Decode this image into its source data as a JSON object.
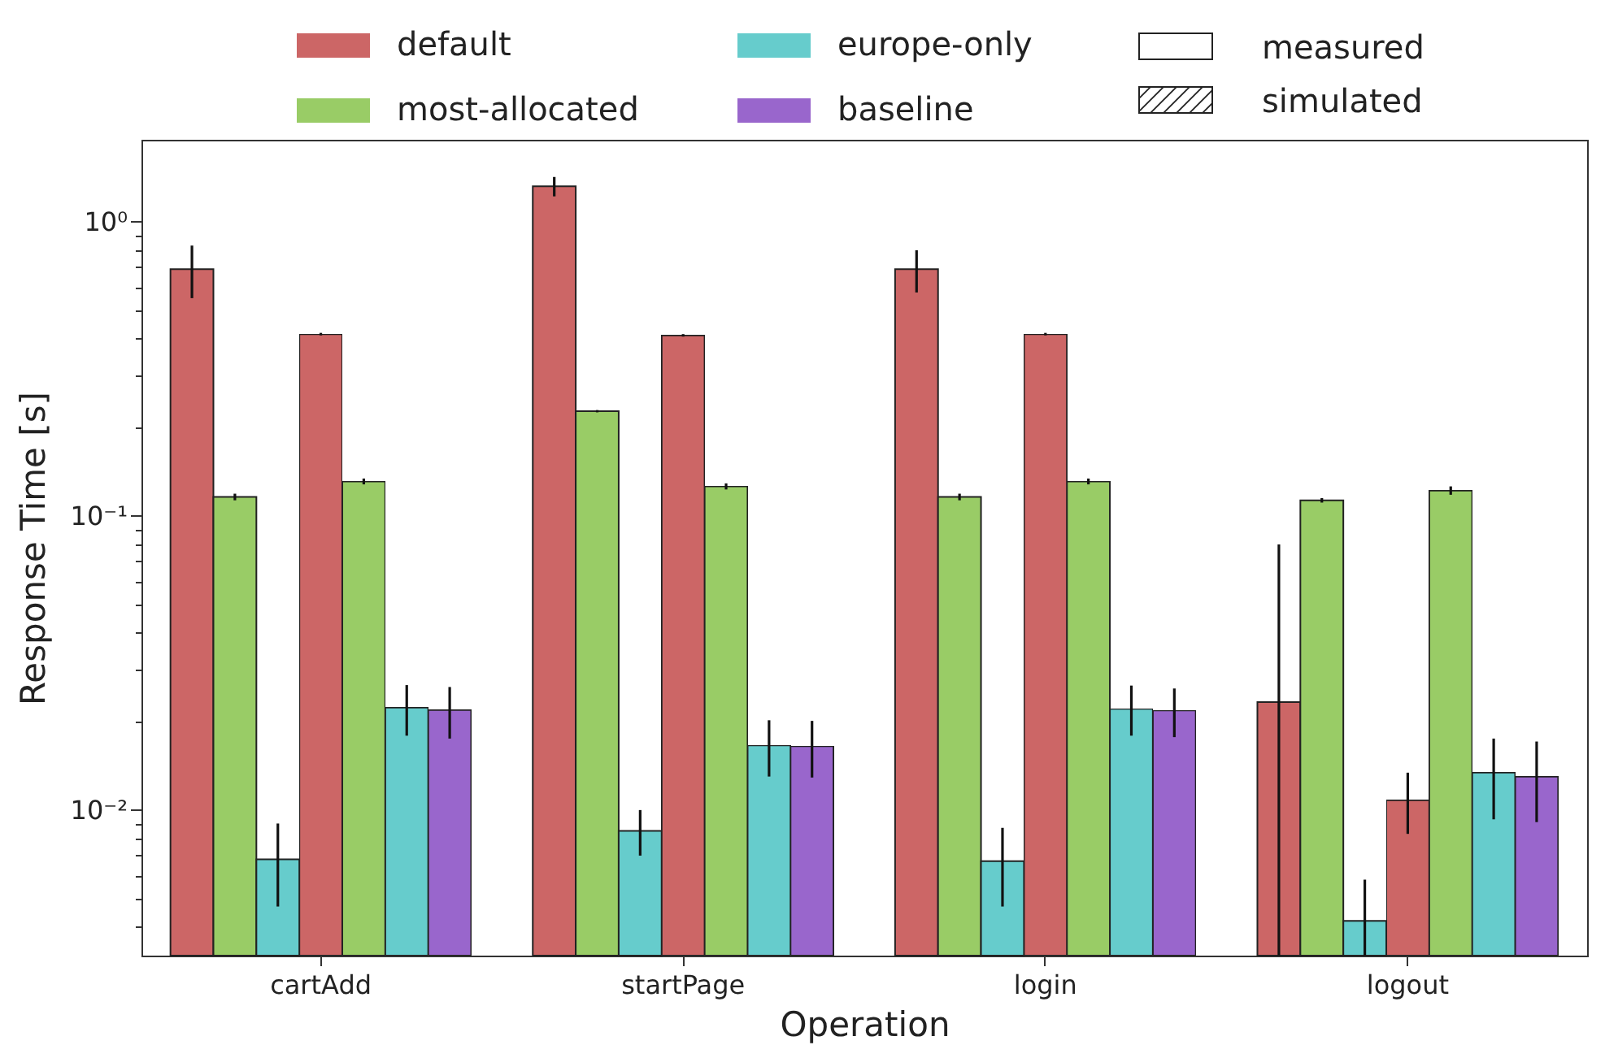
{
  "chart_data": {
    "type": "bar",
    "xlabel": "Operation",
    "ylabel": "Response Time [s]",
    "log": "y",
    "legend": "top",
    "categories": [
      "cartAdd",
      "startPage",
      "login",
      "logout"
    ],
    "annotations": [
      "measured",
      "simulated"
    ],
    "series": [
      {
        "name": "default",
        "color": "#cc6666",
        "values": [
          0.69,
          1.32,
          0.69,
          0.0233
        ],
        "errors": [
          [
            0.55,
            0.83
          ],
          [
            1.22,
            1.42
          ],
          [
            0.575,
            0.8
          ],
          [
            0.0032,
            0.08
          ]
        ]
      },
      {
        "name": "most-allocated",
        "color": "#99cc66",
        "values": [
          0.116,
          0.227,
          0.116,
          0.113
        ],
        "errors": [
          0.003,
          0.002,
          0.003,
          0.002
        ]
      },
      {
        "name": "europe-only",
        "color": "#66cccc",
        "values": [
          0.0068,
          0.0085,
          0.0067,
          0.0042
        ],
        "errors": [
          [
            0.0047,
            0.009
          ],
          [
            0.007,
            0.01
          ],
          [
            0.0047,
            0.0087
          ],
          [
            0.0032,
            0.0058
          ]
        ]
      },
      {
        "color": "#cc6666",
        "line_style": "dashed",
        "values": [
          0.415,
          0.411,
          0.415,
          0.0108
        ],
        "errors": [
          0.004,
          0.004,
          0.004,
          [
            0.0083,
            0.0134
          ]
        ]
      },
      {
        "color": "#99cc66",
        "line_style": "dashed",
        "values": [
          0.131,
          0.126,
          0.131,
          0.122
        ],
        "errors": [
          0.003,
          0.003,
          0.003,
          0.004
        ]
      },
      {
        "color": "#66cccc",
        "line_style": "dashed",
        "values": [
          0.0223,
          0.0166,
          0.0221,
          0.0134
        ],
        "errors": [
          [
            0.0179,
            0.0266
          ],
          [
            0.013,
            0.0202
          ],
          [
            0.0179,
            0.0265
          ],
          [
            0.0093,
            0.0175
          ]
        ]
      },
      {
        "name": "baseline",
        "color": "#9966cc",
        "line_style": "dashed",
        "values": [
          0.0219,
          0.0165,
          0.0218,
          0.013
        ],
        "errors": [
          [
            0.0175,
            0.0262
          ],
          [
            0.0129,
            0.0201
          ],
          [
            0.0177,
            0.0259
          ],
          [
            0.0091,
            0.0171
          ]
        ]
      }
    ],
    "ylim": [
      0.0032,
      1.9
    ],
    "yticks": [
      {
        "value": 0.004,
        "label": null
      },
      {
        "value": 0.005,
        "label": null
      },
      {
        "value": 0.006,
        "label": null
      },
      {
        "value": 0.007,
        "label": null
      },
      {
        "value": 0.008,
        "label": null
      },
      {
        "value": 0.009,
        "label": null
      },
      {
        "value": 0.01,
        "label": "10⁻²"
      },
      {
        "value": 0.02,
        "label": null
      },
      {
        "value": 0.03,
        "label": null
      },
      {
        "value": 0.04,
        "label": null
      },
      {
        "value": 0.05,
        "label": null
      },
      {
        "value": 0.06,
        "label": null
      },
      {
        "value": 0.07,
        "label": null
      },
      {
        "value": 0.08,
        "label": null
      },
      {
        "value": 0.09,
        "label": null
      },
      {
        "value": 0.1,
        "label": "10⁻¹"
      },
      {
        "value": 0.2,
        "label": null
      },
      {
        "value": 0.3,
        "label": null
      },
      {
        "value": 0.4,
        "label": null
      },
      {
        "value": 0.5,
        "label": null
      },
      {
        "value": 0.6,
        "label": null
      },
      {
        "value": 0.7,
        "label": null
      },
      {
        "value": 0.8,
        "label": null
      },
      {
        "value": 0.9,
        "label": null
      },
      {
        "value": 1,
        "label": "10⁰"
      }
    ]
  }
}
